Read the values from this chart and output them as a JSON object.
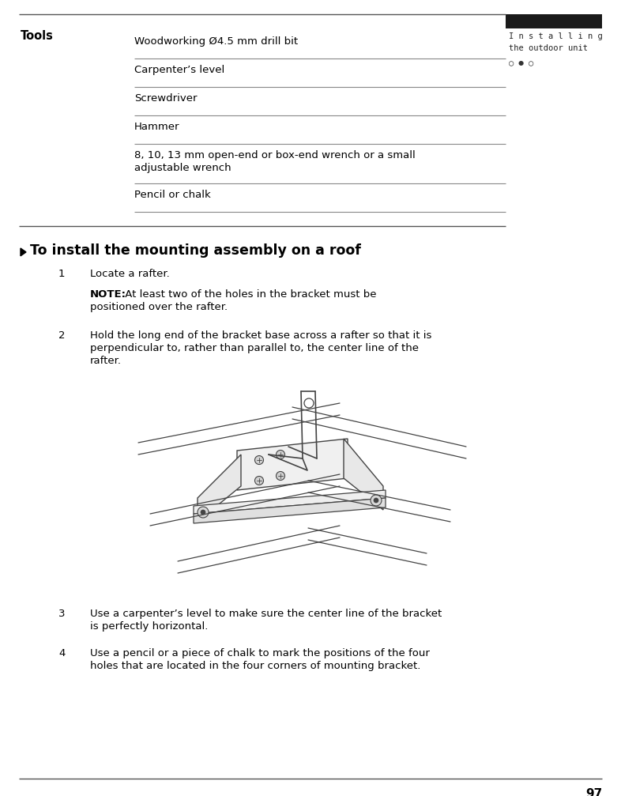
{
  "bg_color": "#ffffff",
  "page_number": "97",
  "sidebar_title_line1": "I n s t a l l i n g",
  "sidebar_title_line2": "the outdoor unit",
  "sidebar_dots": "○ ● ○",
  "sidebar_bar_color": "#1a1a1a",
  "tools_label": "Tools",
  "tools_items": [
    "Woodworking Ø4.5 mm drill bit",
    "Carpenter’s level",
    "Screwdriver",
    "Hammer",
    "8, 10, 13 mm open-end or box-end wrench or a small",
    "Pencil or chalk"
  ],
  "tools_item5_line2": "adjustable wrench",
  "section_title": "To install the mounting assembly on a roof",
  "note_bold": "NOTE:",
  "note_rest_line1": " At least two of the holes in the bracket must be",
  "note_rest_line2": "positioned over the rafter.",
  "step1_text": "Locate a rafter.",
  "step2_line1": "Hold the long end of the bracket base across a rafter so that it is",
  "step2_line2": "perpendicular to, rather than parallel to, the center line of the",
  "step2_line3": "rafter.",
  "step3_line1": "Use a carpenter’s level to make sure the center line of the bracket",
  "step3_line2": "is perfectly horizontal.",
  "step4_line1": "Use a pencil or a piece of chalk to mark the positions of the four",
  "step4_line2": "holes that are located in the four corners of mounting bracket.",
  "body_fontsize": 9.5,
  "tools_fontsize": 9.5,
  "title_fontsize": 12.5,
  "label_fontsize": 10.5
}
